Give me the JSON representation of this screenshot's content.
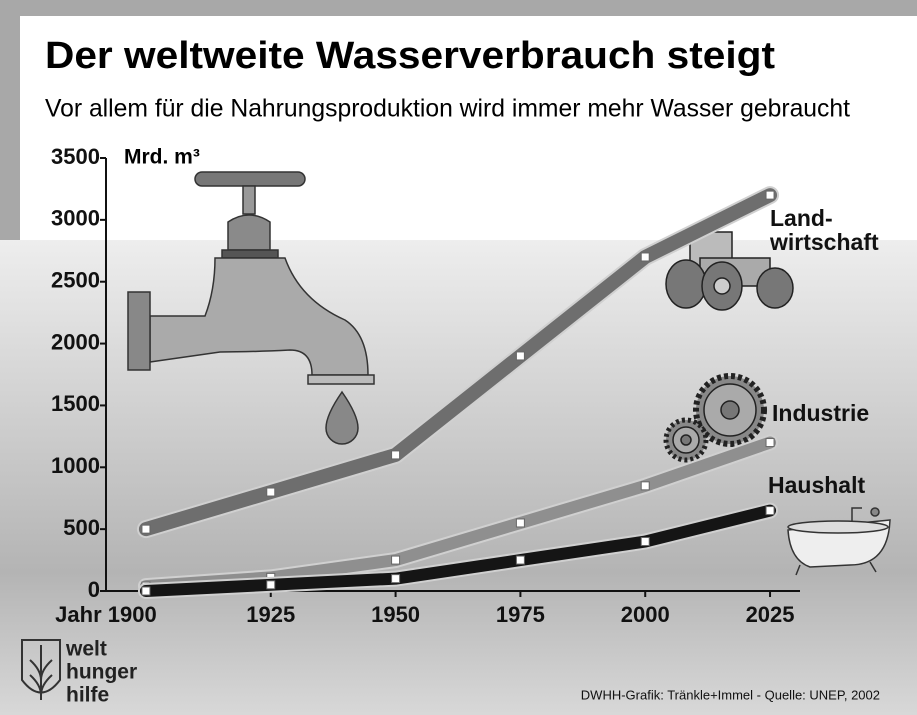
{
  "chart_data": {
    "type": "line",
    "title": "Der weltweite Wasserverbrauch steigt",
    "subtitle": "Vor allem für die Nahrungsproduktion wird immer mehr Wasser gebraucht",
    "y_label": "Mrd. m³",
    "x": [
      1900,
      1925,
      1950,
      1975,
      2000,
      2025
    ],
    "xlim": [
      1892,
      2031
    ],
    "xticks": [
      {
        "value": 1900,
        "label": "Jahr 1900"
      },
      1925,
      1950,
      1975,
      2000,
      2025
    ],
    "ylim": [
      0,
      3500
    ],
    "yticks": [
      0,
      500,
      1000,
      1500,
      2000,
      2500,
      3000,
      3500
    ],
    "series": [
      {
        "name": "Land-\nwirtschaft",
        "color": "#6e6e6e",
        "values": [
          500,
          800,
          1100,
          1900,
          2700,
          3200
        ]
      },
      {
        "name": "Industrie",
        "color": "#8f8f8f",
        "values": [
          40,
          110,
          250,
          550,
          850,
          1200
        ]
      },
      {
        "name": "Haushalt",
        "color": "#151515",
        "values": [
          0,
          50,
          100,
          250,
          400,
          650
        ]
      }
    ],
    "source": "DWHH-Grafik: Tränkle+Immel - Quelle: UNEP, 2002",
    "logo": [
      "welt",
      "hunger",
      "hilfe"
    ]
  }
}
